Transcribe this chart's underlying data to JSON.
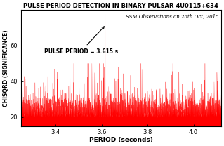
{
  "title": "PULSE PERIOD DETECTION IN BINARY PULSAR 4U0115+634",
  "xlabel": "PERIOD (seconds)",
  "ylabel": "CHISQRD (SIGNIFICANCE)",
  "obs_note": "SSM Observations on 26th Oct, 2015",
  "pulse_period_label": "PULSE PERIOD = 3.615 s",
  "pulse_period": 3.615,
  "x_min": 3.25,
  "x_max": 4.12,
  "y_min": 15,
  "y_max": 80,
  "peak_value": 78,
  "noise_base": 20,
  "noise_std": 5,
  "background_color": "#ffffff",
  "line_color": "#ff0000",
  "n_points": 3000,
  "seed": 42,
  "xticks": [
    3.4,
    3.6,
    3.8,
    4.0
  ],
  "yticks": [
    20,
    40,
    60
  ],
  "title_fontsize": 6.0,
  "label_fontsize": 6.5,
  "tick_fontsize": 6,
  "annot_fontsize": 5.5,
  "note_fontsize": 5.0,
  "figsize": [
    3.19,
    2.08
  ],
  "dpi": 100
}
